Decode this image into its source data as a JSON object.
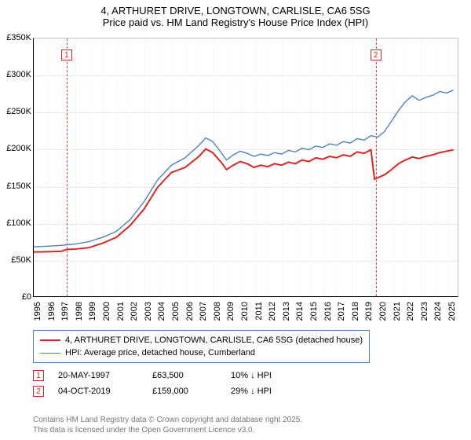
{
  "title": {
    "line1": "4, ARTHURET DRIVE, LONGTOWN, CARLISLE, CA6 5SG",
    "line2": "Price paid vs. HM Land Registry's House Price Index (HPI)"
  },
  "chart": {
    "type": "line",
    "background": "#ffffff",
    "grid_color": "#e8e8e8",
    "xgrid_color": "#eeeeee",
    "axis_color": "#000000",
    "xlim": [
      1995,
      2025.8
    ],
    "ylim": [
      0,
      350000
    ],
    "yticks": [
      0,
      50000,
      100000,
      150000,
      200000,
      250000,
      300000,
      350000
    ],
    "ytick_labels": [
      "£0",
      "£50K",
      "£100K",
      "£150K",
      "£200K",
      "£250K",
      "£300K",
      "£350K"
    ],
    "xticks": [
      1995,
      1996,
      1997,
      1998,
      1999,
      2000,
      2001,
      2002,
      2003,
      2004,
      2005,
      2006,
      2007,
      2008,
      2009,
      2010,
      2011,
      2012,
      2013,
      2014,
      2015,
      2016,
      2017,
      2018,
      2019,
      2020,
      2021,
      2022,
      2023,
      2024,
      2025
    ],
    "series": [
      {
        "name": "price_paid",
        "label": "4, ARTHURET DRIVE, LONGTOWN, CARLISLE, CA6 5SG (detached house)",
        "color": "#d82626",
        "width": 2,
        "points": [
          [
            1995,
            60000
          ],
          [
            1996,
            60500
          ],
          [
            1997,
            61000
          ],
          [
            1997.4,
            63500
          ],
          [
            1998,
            64000
          ],
          [
            1999,
            66000
          ],
          [
            2000,
            72000
          ],
          [
            2001,
            80000
          ],
          [
            2002,
            96000
          ],
          [
            2003,
            118000
          ],
          [
            2004,
            148000
          ],
          [
            2005,
            168000
          ],
          [
            2006,
            175000
          ],
          [
            2007,
            190000
          ],
          [
            2007.5,
            200000
          ],
          [
            2008,
            195000
          ],
          [
            2008.7,
            180000
          ],
          [
            2009,
            172000
          ],
          [
            2009.5,
            178000
          ],
          [
            2010,
            183000
          ],
          [
            2010.5,
            180000
          ],
          [
            2011,
            175000
          ],
          [
            2011.5,
            178000
          ],
          [
            2012,
            176000
          ],
          [
            2012.5,
            180000
          ],
          [
            2013,
            178000
          ],
          [
            2013.5,
            182000
          ],
          [
            2014,
            180000
          ],
          [
            2014.5,
            185000
          ],
          [
            2015,
            183000
          ],
          [
            2015.5,
            188000
          ],
          [
            2016,
            186000
          ],
          [
            2016.5,
            190000
          ],
          [
            2017,
            188000
          ],
          [
            2017.5,
            192000
          ],
          [
            2018,
            190000
          ],
          [
            2018.5,
            196000
          ],
          [
            2019,
            194000
          ],
          [
            2019.5,
            199000
          ],
          [
            2019.76,
            159000
          ],
          [
            2020,
            161000
          ],
          [
            2020.5,
            165000
          ],
          [
            2021,
            172000
          ],
          [
            2021.5,
            180000
          ],
          [
            2022,
            185000
          ],
          [
            2022.5,
            189000
          ],
          [
            2023,
            187000
          ],
          [
            2023.5,
            190000
          ],
          [
            2024,
            192000
          ],
          [
            2024.5,
            195000
          ],
          [
            2025,
            197000
          ],
          [
            2025.5,
            199000
          ]
        ]
      },
      {
        "name": "hpi",
        "label": "HPI: Average price, detached house, Cumberland",
        "color": "#5082be",
        "width": 1.4,
        "points": [
          [
            1995,
            67000
          ],
          [
            1996,
            68000
          ],
          [
            1997,
            69000
          ],
          [
            1998,
            71000
          ],
          [
            1999,
            74000
          ],
          [
            2000,
            80000
          ],
          [
            2001,
            88000
          ],
          [
            2002,
            104000
          ],
          [
            2003,
            128000
          ],
          [
            2004,
            158000
          ],
          [
            2005,
            178000
          ],
          [
            2006,
            188000
          ],
          [
            2007,
            205000
          ],
          [
            2007.5,
            215000
          ],
          [
            2008,
            210000
          ],
          [
            2008.7,
            193000
          ],
          [
            2009,
            185000
          ],
          [
            2009.5,
            192000
          ],
          [
            2010,
            197000
          ],
          [
            2010.5,
            194000
          ],
          [
            2011,
            190000
          ],
          [
            2011.5,
            193000
          ],
          [
            2012,
            191000
          ],
          [
            2012.5,
            195000
          ],
          [
            2013,
            193000
          ],
          [
            2013.5,
            198000
          ],
          [
            2014,
            196000
          ],
          [
            2014.5,
            201000
          ],
          [
            2015,
            199000
          ],
          [
            2015.5,
            204000
          ],
          [
            2016,
            202000
          ],
          [
            2016.5,
            207000
          ],
          [
            2017,
            205000
          ],
          [
            2017.5,
            210000
          ],
          [
            2018,
            208000
          ],
          [
            2018.5,
            214000
          ],
          [
            2019,
            212000
          ],
          [
            2019.5,
            218000
          ],
          [
            2020,
            216000
          ],
          [
            2020.5,
            224000
          ],
          [
            2021,
            238000
          ],
          [
            2021.5,
            252000
          ],
          [
            2022,
            264000
          ],
          [
            2022.5,
            272000
          ],
          [
            2023,
            266000
          ],
          [
            2023.5,
            270000
          ],
          [
            2024,
            273000
          ],
          [
            2024.5,
            278000
          ],
          [
            2025,
            276000
          ],
          [
            2025.5,
            280000
          ]
        ]
      }
    ],
    "reference_lines": [
      {
        "id": "1",
        "x": 1997.38,
        "color": "#ef4444"
      },
      {
        "id": "2",
        "x": 2019.76,
        "color": "#ef4444"
      }
    ]
  },
  "transactions": [
    {
      "id": "1",
      "date": "20-MAY-1997",
      "price": "£63,500",
      "delta": "10% ↓ HPI"
    },
    {
      "id": "2",
      "date": "04-OCT-2019",
      "price": "£159,000",
      "delta": "29% ↓ HPI"
    }
  ],
  "footer": {
    "line1": "Contains HM Land Registry data © Crown copyright and database right 2025.",
    "line2": "This data is licensed under the Open Government Licence v3.0."
  }
}
